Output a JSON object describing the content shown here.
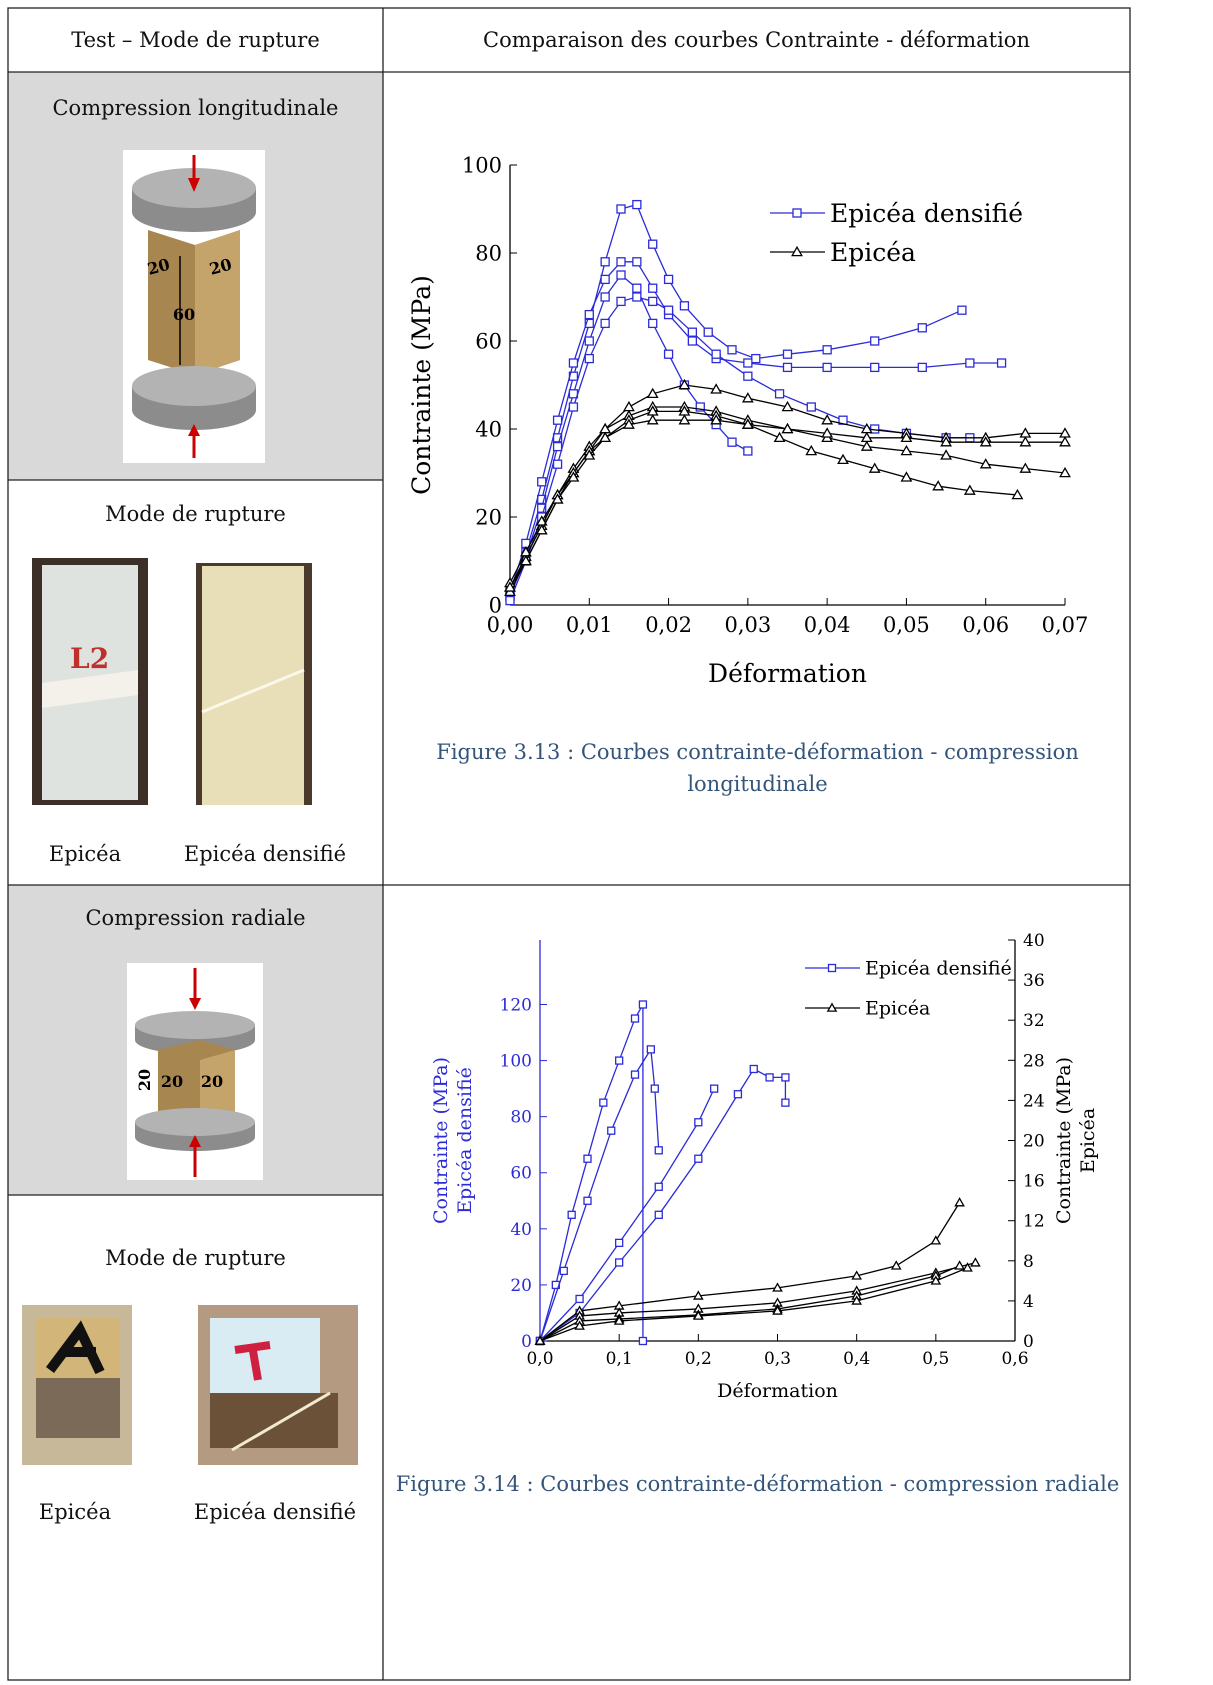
{
  "header": {
    "columns": [
      "Test – Mode de rupture",
      "Comparaison des courbes Contrainte - déformation"
    ]
  },
  "rows": [
    {
      "test": "Compression longitudinale",
      "dimensions": [
        "20",
        "20",
        "60"
      ],
      "mode_title": "Mode de rupture",
      "specimens": [
        "Epicéa",
        "Epicéa densifié"
      ],
      "caption": "Figure 3.13 : Courbes contrainte-déformation - compression longitudinale"
    },
    {
      "test": "Compression radiale",
      "dimensions": [
        "20",
        "20",
        "20"
      ],
      "mode_title": "Mode de rupture",
      "specimens": [
        "Epicéa",
        "Epicéa densifié"
      ],
      "caption": "Figure 3.14 : Courbes contrainte-déformation - compression radiale"
    }
  ],
  "chart_data": [
    {
      "type": "line",
      "xlabel": "Déformation",
      "ylabel": "Contrainte (MPa)",
      "y_axis_color": "#000000",
      "legend": "upper right",
      "xlim": [
        0,
        0.07
      ],
      "xticks": [
        {
          "value": 0,
          "label": "0,00"
        },
        {
          "value": 0.01,
          "label": "0,01"
        },
        {
          "value": 0.02,
          "label": "0,02"
        },
        {
          "value": 0.03,
          "label": "0,03"
        },
        {
          "value": 0.04,
          "label": "0,04"
        },
        {
          "value": 0.05,
          "label": "0,05"
        },
        {
          "value": 0.06,
          "label": "0,06"
        },
        {
          "value": 0.07,
          "label": "0,07"
        }
      ],
      "ylim": [
        0,
        100
      ],
      "yticks": [
        0,
        20,
        40,
        60,
        80,
        100
      ],
      "series": [
        {
          "name": "Epicéa densifié",
          "color": "#2b2bd9",
          "marker": "square",
          "curves": [
            {
              "x": [
                0,
                0.002,
                0.004,
                0.006,
                0.008,
                0.01,
                0.012,
                0.014,
                0.016,
                0.018,
                0.02,
                0.022,
                0.025,
                0.028,
                0.031,
                0.035,
                0.04,
                0.046,
                0.052,
                0.057
              ],
              "y": [
                2,
                12,
                24,
                38,
                52,
                64,
                78,
                90,
                91,
                82,
                74,
                68,
                62,
                58,
                56,
                57,
                58,
                60,
                63,
                67
              ]
            },
            {
              "x": [
                0,
                0.002,
                0.004,
                0.006,
                0.008,
                0.01,
                0.012,
                0.014,
                0.016,
                0.018,
                0.02,
                0.023,
                0.026,
                0.03,
                0.035,
                0.04,
                0.046,
                0.052,
                0.058,
                0.062
              ],
              "y": [
                3,
                14,
                28,
                42,
                55,
                66,
                74,
                78,
                78,
                72,
                66,
                60,
                56,
                55,
                54,
                54,
                54,
                54,
                55,
                55
              ]
            },
            {
              "x": [
                0,
                0.002,
                0.004,
                0.006,
                0.008,
                0.01,
                0.012,
                0.014,
                0.016,
                0.018,
                0.02,
                0.022,
                0.024,
                0.026,
                0.028,
                0.03
              ],
              "y": [
                2,
                11,
                22,
                36,
                48,
                60,
                70,
                75,
                72,
                64,
                57,
                50,
                45,
                41,
                37,
                35
              ]
            },
            {
              "x": [
                0,
                0.002,
                0.004,
                0.006,
                0.008,
                0.01,
                0.012,
                0.014,
                0.016,
                0.018,
                0.02,
                0.023,
                0.026,
                0.03,
                0.034,
                0.038,
                0.042,
                0.046,
                0.05,
                0.055,
                0.058
              ],
              "y": [
                1,
                10,
                20,
                32,
                45,
                56,
                64,
                69,
                70,
                69,
                67,
                62,
                57,
                52,
                48,
                45,
                42,
                40,
                39,
                38,
                38
              ]
            }
          ]
        },
        {
          "name": "Epicéa",
          "color": "#000000",
          "marker": "triangle",
          "curves": [
            {
              "x": [
                0,
                0.002,
                0.004,
                0.006,
                0.008,
                0.01,
                0.012,
                0.015,
                0.018,
                0.022,
                0.026,
                0.03,
                0.035,
                0.04,
                0.045,
                0.05,
                0.055,
                0.06,
                0.065,
                0.07
              ],
              "y": [
                3,
                10,
                17,
                24,
                30,
                35,
                40,
                45,
                48,
                50,
                49,
                47,
                45,
                42,
                40,
                39,
                38,
                38,
                39,
                39
              ]
            },
            {
              "x": [
                0,
                0.002,
                0.004,
                0.006,
                0.008,
                0.01,
                0.012,
                0.015,
                0.018,
                0.022,
                0.026,
                0.03,
                0.035,
                0.04,
                0.045,
                0.05,
                0.055,
                0.06,
                0.065,
                0.07
              ],
              "y": [
                4,
                11,
                18,
                25,
                31,
                36,
                40,
                43,
                45,
                45,
                44,
                42,
                40,
                38,
                36,
                35,
                34,
                32,
                31,
                30
              ]
            },
            {
              "x": [
                0,
                0.002,
                0.004,
                0.006,
                0.008,
                0.01,
                0.012,
                0.015,
                0.018,
                0.022,
                0.026,
                0.03,
                0.034,
                0.038,
                0.042,
                0.046,
                0.05,
                0.054,
                0.058,
                0.064
              ],
              "y": [
                5,
                12,
                19,
                25,
                30,
                35,
                38,
                42,
                44,
                44,
                43,
                41,
                38,
                35,
                33,
                31,
                29,
                27,
                26,
                25
              ]
            },
            {
              "x": [
                0,
                0.002,
                0.004,
                0.006,
                0.008,
                0.01,
                0.012,
                0.015,
                0.018,
                0.022,
                0.026,
                0.03,
                0.035,
                0.04,
                0.045,
                0.05,
                0.055,
                0.06,
                0.065,
                0.07
              ],
              "y": [
                4,
                10,
                17,
                24,
                29,
                34,
                38,
                41,
                42,
                42,
                42,
                41,
                40,
                39,
                38,
                38,
                37,
                37,
                37,
                37
              ]
            }
          ]
        }
      ]
    },
    {
      "type": "line",
      "xlabel": "Déformation",
      "ylabel": [
        "Contrainte (MPa)",
        "Epicéa densifié"
      ],
      "y_axis_color": "#2b2bd9",
      "y2label": [
        "Contrainte (MPa)",
        "Epicéa"
      ],
      "legend": "upper right",
      "xlim": [
        0,
        0.6
      ],
      "xticks": [
        {
          "value": 0,
          "label": "0,0"
        },
        {
          "value": 0.1,
          "label": "0,1"
        },
        {
          "value": 0.2,
          "label": "0,2"
        },
        {
          "value": 0.3,
          "label": "0,3"
        },
        {
          "value": 0.4,
          "label": "0,4"
        },
        {
          "value": 0.5,
          "label": "0,5"
        },
        {
          "value": 0.6,
          "label": "0,6"
        }
      ],
      "ylim": [
        0,
        143
      ],
      "yticks": [
        0,
        20,
        40,
        60,
        80,
        100,
        120
      ],
      "y2lim": [
        0,
        40
      ],
      "y2ticks": [
        0,
        4,
        8,
        12,
        16,
        20,
        24,
        28,
        32,
        36,
        40
      ],
      "series": [
        {
          "name": "Epicéa densifié",
          "color": "#2b2bd9",
          "marker": "square",
          "curves": [
            {
              "x": [
                0,
                0.02,
                0.04,
                0.06,
                0.08,
                0.1,
                0.12,
                0.13,
                0.13
              ],
              "y": [
                0,
                20,
                45,
                65,
                85,
                100,
                115,
                120,
                0
              ]
            },
            {
              "x": [
                0,
                0.03,
                0.06,
                0.09,
                0.12,
                0.14,
                0.145,
                0.15
              ],
              "y": [
                0,
                25,
                50,
                75,
                95,
                104,
                90,
                68
              ]
            },
            {
              "x": [
                0,
                0.05,
                0.1,
                0.15,
                0.2,
                0.22
              ],
              "y": [
                0,
                15,
                35,
                55,
                78,
                90
              ]
            },
            {
              "x": [
                0,
                0.05,
                0.1,
                0.15,
                0.2,
                0.25,
                0.27,
                0.29,
                0.31,
                0.31
              ],
              "y": [
                0,
                10,
                28,
                45,
                65,
                88,
                97,
                94,
                94,
                85
              ]
            }
          ]
        },
        {
          "name": "Epicéa",
          "color": "#000000",
          "marker": "triangle",
          "axis": "y2",
          "curves": [
            {
              "x": [
                0,
                0.05,
                0.1,
                0.2,
                0.3,
                0.4,
                0.45,
                0.5,
                0.53
              ],
              "y": [
                0,
                3,
                3.5,
                4.5,
                5.3,
                6.5,
                7.5,
                10,
                13.8
              ]
            },
            {
              "x": [
                0,
                0.05,
                0.1,
                0.2,
                0.3,
                0.4,
                0.5,
                0.55
              ],
              "y": [
                0,
                2.5,
                2.8,
                3.2,
                3.8,
                5,
                6.8,
                7.8
              ]
            },
            {
              "x": [
                0,
                0.05,
                0.1,
                0.2,
                0.3,
                0.4,
                0.5,
                0.53
              ],
              "y": [
                0,
                2,
                2.2,
                2.6,
                3.2,
                4.5,
                6.5,
                7.5
              ]
            },
            {
              "x": [
                0,
                0.05,
                0.1,
                0.2,
                0.3,
                0.4,
                0.5,
                0.54
              ],
              "y": [
                0,
                1.5,
                2,
                2.5,
                3,
                4,
                6,
                7.3
              ]
            }
          ]
        }
      ]
    }
  ]
}
